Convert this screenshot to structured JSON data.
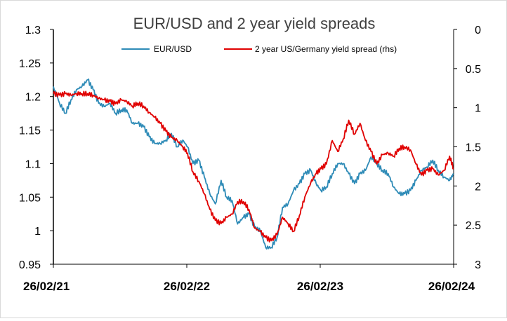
{
  "chart_data": {
    "type": "line",
    "title": "EUR/USD and 2 year yield spreads",
    "xlabel": "",
    "ylabel": "",
    "y2label": "",
    "x_ticks": [
      "26/02/21",
      "26/02/22",
      "26/02/23",
      "26/02/24"
    ],
    "x_range": [
      "2021-02-26",
      "2024-02-26"
    ],
    "ylim": [
      0.95,
      1.3
    ],
    "y_ticks": [
      0.95,
      1,
      1.05,
      1.1,
      1.15,
      1.2,
      1.25,
      1.3
    ],
    "y_tick_labels": [
      "0.95",
      "1",
      "1.05",
      "1.1",
      "1.15",
      "1.2",
      "1.25",
      "1.3"
    ],
    "y2lim": [
      0,
      3
    ],
    "y2_inverted": true,
    "y2_ticks": [
      0,
      0.5,
      1,
      1.5,
      2,
      2.5,
      3
    ],
    "y2_tick_labels": [
      "0",
      "0.5",
      "1",
      "1.5",
      "2",
      "2.5",
      "3"
    ],
    "grid": false,
    "legend_position": "top",
    "series": [
      {
        "name": "EUR/USD",
        "axis": "left",
        "color": "#2e8bb7",
        "x": [
          "2021-02-26",
          "2021-03-15",
          "2021-03-31",
          "2021-04-15",
          "2021-04-30",
          "2021-05-15",
          "2021-05-31",
          "2021-06-15",
          "2021-06-30",
          "2021-07-15",
          "2021-07-31",
          "2021-08-15",
          "2021-08-31",
          "2021-09-15",
          "2021-09-30",
          "2021-10-15",
          "2021-10-31",
          "2021-11-15",
          "2021-11-30",
          "2021-12-15",
          "2021-12-31",
          "2022-01-15",
          "2022-01-31",
          "2022-02-15",
          "2022-02-28",
          "2022-03-15",
          "2022-03-31",
          "2022-04-15",
          "2022-04-30",
          "2022-05-15",
          "2022-05-31",
          "2022-06-15",
          "2022-06-30",
          "2022-07-15",
          "2022-07-31",
          "2022-08-15",
          "2022-08-31",
          "2022-09-15",
          "2022-09-30",
          "2022-10-15",
          "2022-10-31",
          "2022-11-15",
          "2022-11-30",
          "2022-12-15",
          "2022-12-31",
          "2023-01-15",
          "2023-01-31",
          "2023-02-15",
          "2023-02-28",
          "2023-03-15",
          "2023-03-31",
          "2023-04-15",
          "2023-04-30",
          "2023-05-15",
          "2023-05-31",
          "2023-06-15",
          "2023-06-30",
          "2023-07-15",
          "2023-07-31",
          "2023-08-15",
          "2023-08-31",
          "2023-09-15",
          "2023-09-30",
          "2023-10-15",
          "2023-10-31",
          "2023-11-15",
          "2023-11-30",
          "2023-12-15",
          "2023-12-31",
          "2024-01-15",
          "2024-01-31",
          "2024-02-15",
          "2024-02-26"
        ],
        "values": [
          1.215,
          1.19,
          1.175,
          1.195,
          1.21,
          1.215,
          1.225,
          1.21,
          1.19,
          1.185,
          1.19,
          1.175,
          1.18,
          1.18,
          1.16,
          1.16,
          1.155,
          1.14,
          1.13,
          1.13,
          1.135,
          1.145,
          1.125,
          1.135,
          1.125,
          1.1,
          1.105,
          1.08,
          1.055,
          1.04,
          1.075,
          1.05,
          1.045,
          1.01,
          1.02,
          1.025,
          1.005,
          1.0,
          0.975,
          0.975,
          0.99,
          1.035,
          1.04,
          1.06,
          1.07,
          1.085,
          1.09,
          1.07,
          1.06,
          1.065,
          1.085,
          1.1,
          1.1,
          1.085,
          1.07,
          1.085,
          1.09,
          1.11,
          1.1,
          1.09,
          1.085,
          1.065,
          1.055,
          1.055,
          1.06,
          1.075,
          1.09,
          1.095,
          1.105,
          1.09,
          1.08,
          1.075,
          1.085
        ]
      },
      {
        "name": "2 year US/Germany yield spread (rhs)",
        "axis": "right",
        "color": "#e00000",
        "x": [
          "2021-02-26",
          "2021-03-15",
          "2021-03-31",
          "2021-04-15",
          "2021-04-30",
          "2021-05-15",
          "2021-05-31",
          "2021-06-15",
          "2021-06-30",
          "2021-07-15",
          "2021-07-31",
          "2021-08-15",
          "2021-08-31",
          "2021-09-15",
          "2021-09-30",
          "2021-10-15",
          "2021-10-31",
          "2021-11-15",
          "2021-11-30",
          "2021-12-15",
          "2021-12-31",
          "2022-01-15",
          "2022-01-31",
          "2022-02-15",
          "2022-02-28",
          "2022-03-15",
          "2022-03-31",
          "2022-04-15",
          "2022-04-30",
          "2022-05-15",
          "2022-05-31",
          "2022-06-15",
          "2022-06-30",
          "2022-07-15",
          "2022-07-31",
          "2022-08-15",
          "2022-08-31",
          "2022-09-15",
          "2022-09-30",
          "2022-10-15",
          "2022-10-31",
          "2022-11-15",
          "2022-11-30",
          "2022-12-15",
          "2022-12-31",
          "2023-01-15",
          "2023-01-31",
          "2023-02-15",
          "2023-02-28",
          "2023-03-15",
          "2023-03-31",
          "2023-04-15",
          "2023-04-30",
          "2023-05-15",
          "2023-05-31",
          "2023-06-15",
          "2023-06-30",
          "2023-07-15",
          "2023-07-31",
          "2023-08-15",
          "2023-08-31",
          "2023-09-15",
          "2023-09-30",
          "2023-10-15",
          "2023-10-31",
          "2023-11-15",
          "2023-11-30",
          "2023-12-15",
          "2023-12-31",
          "2024-01-15",
          "2024-01-31",
          "2024-02-15",
          "2024-02-26"
        ],
        "values": [
          0.82,
          0.84,
          0.82,
          0.84,
          0.82,
          0.82,
          0.82,
          0.84,
          0.88,
          0.9,
          0.92,
          0.95,
          0.9,
          0.92,
          0.98,
          0.94,
          0.98,
          1.06,
          1.12,
          1.2,
          1.3,
          1.38,
          1.42,
          1.5,
          1.58,
          1.82,
          1.94,
          2.1,
          2.3,
          2.44,
          2.48,
          2.4,
          2.36,
          2.2,
          2.2,
          2.3,
          2.54,
          2.58,
          2.66,
          2.7,
          2.62,
          2.4,
          2.48,
          2.58,
          2.38,
          2.14,
          1.96,
          1.84,
          1.78,
          1.72,
          1.42,
          1.56,
          1.4,
          1.16,
          1.34,
          1.2,
          1.42,
          1.56,
          1.72,
          1.6,
          1.58,
          1.62,
          1.52,
          1.5,
          1.54,
          1.72,
          1.86,
          1.8,
          1.78,
          1.86,
          1.8,
          1.62,
          1.78
        ]
      }
    ]
  }
}
